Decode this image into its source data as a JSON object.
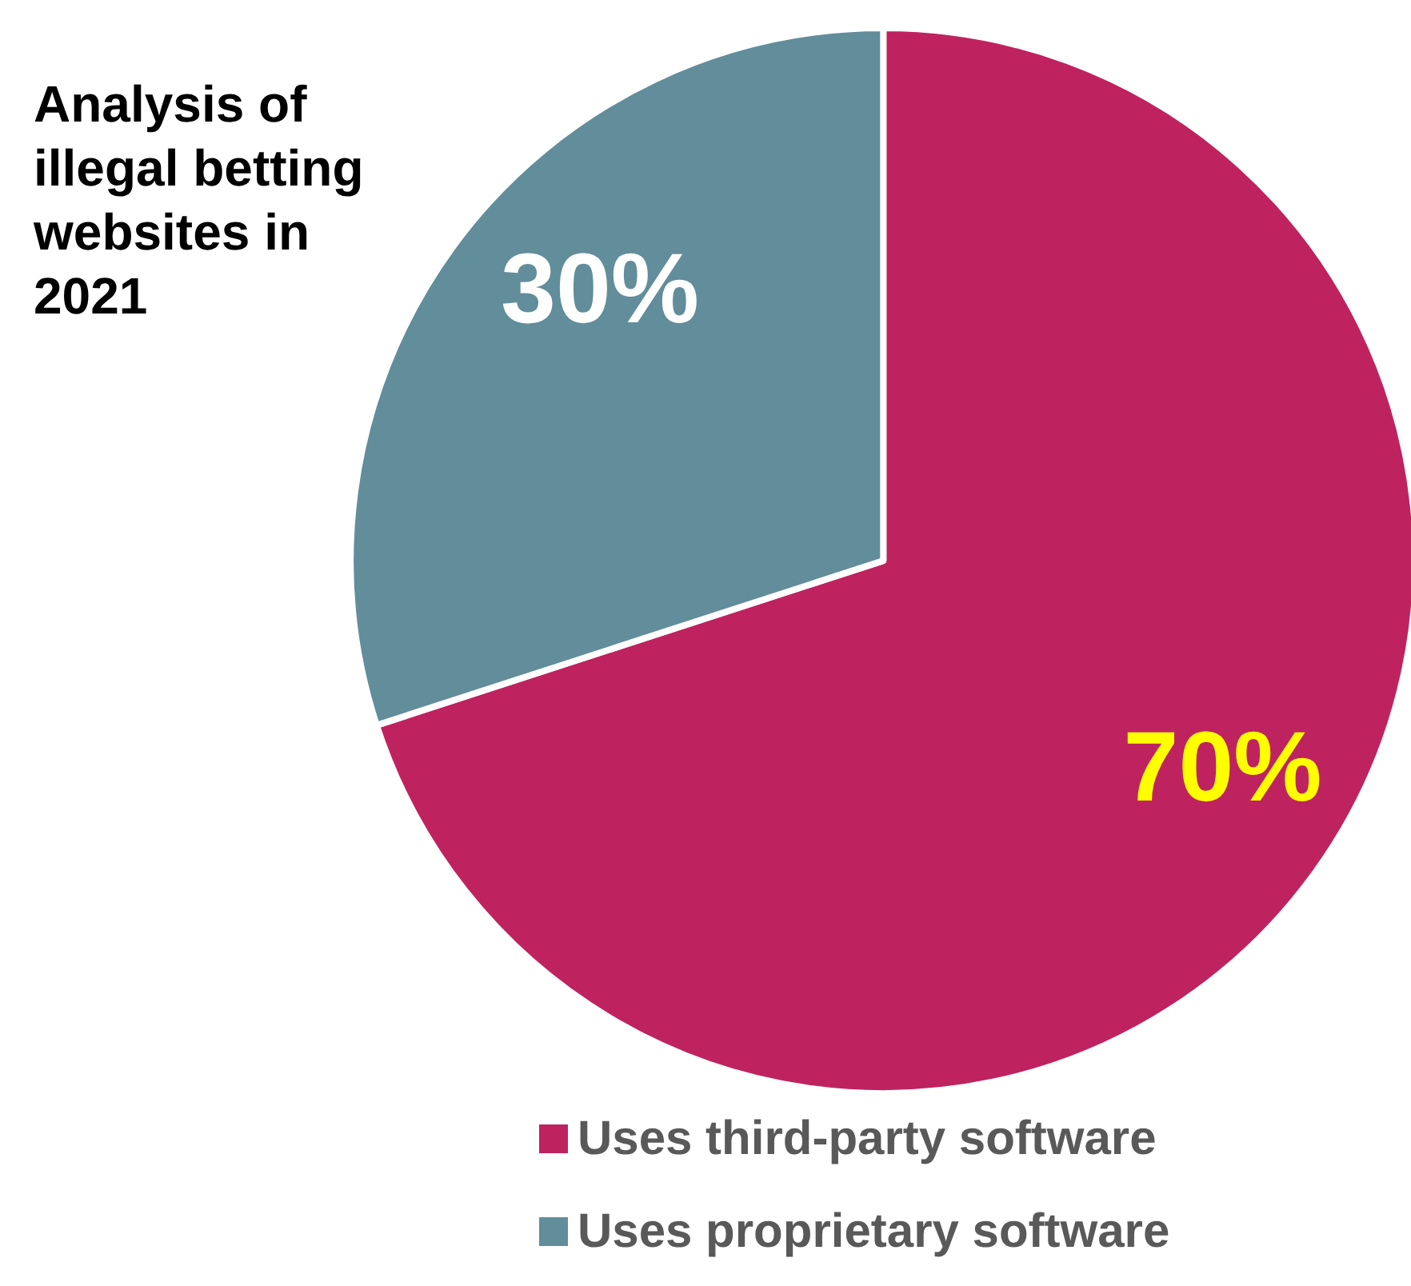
{
  "chart_data": {
    "type": "pie",
    "title": "Analysis of illegal betting websites in 2021",
    "categories": [
      "Uses third-party software",
      "Uses proprietary software"
    ],
    "values": [
      70,
      30
    ],
    "colors": [
      "#be2360",
      "#628d9b"
    ],
    "value_labels": [
      "70%",
      "30%"
    ],
    "legend": "bottom"
  }
}
